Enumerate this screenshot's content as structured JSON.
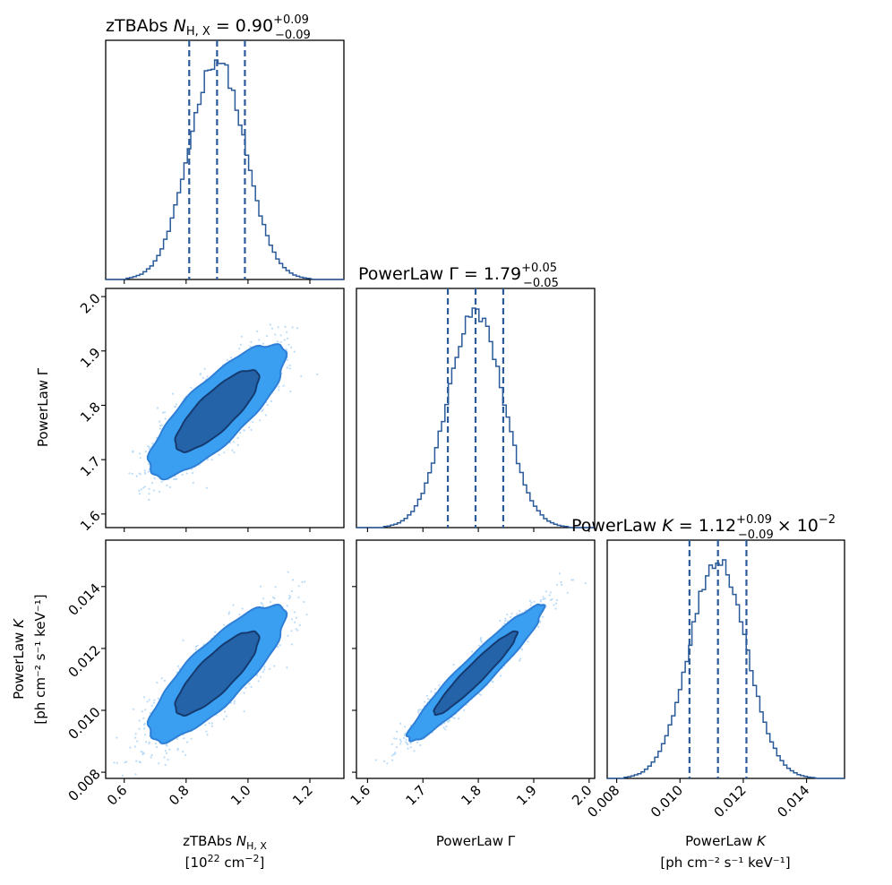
{
  "chart_data": [
    {
      "type": "histogram",
      "panel": "zTBAbs NH,X marginal",
      "title_main": "zTBAbs ",
      "title_sym": "N",
      "title_sub": "H, X",
      "title_eq": " = 0.90",
      "title_sup": "+0.09",
      "title_low": "−0.09",
      "median": 0.9,
      "lower_q": 0.81,
      "upper_q": 0.99,
      "xlim": [
        0.54,
        1.31
      ],
      "xticks": [
        0.6,
        0.8,
        1.0,
        1.2
      ]
    },
    {
      "type": "histogram",
      "panel": "PowerLaw Gamma marginal",
      "title_main": "PowerLaw Γ = 1.79",
      "title_sup": "+0.05",
      "title_low": "−0.05",
      "median": 1.795,
      "lower_q": 1.745,
      "upper_q": 1.845,
      "xlim": [
        1.58,
        2.01
      ],
      "xticks": [
        1.6,
        1.7,
        1.8,
        1.9,
        2.0
      ]
    },
    {
      "type": "histogram",
      "panel": "PowerLaw K marginal",
      "title_main": "PowerLaw ",
      "title_sym": "K",
      "title_eq": " = 1.12",
      "title_sup": "+0.09",
      "title_low": "−0.09",
      "title_mult": "× 10",
      "title_exp": "−2",
      "median": 0.0112,
      "lower_q": 0.0103,
      "upper_q": 0.0121,
      "xlim": [
        0.0077,
        0.0152
      ],
      "xticks": [
        0.008,
        0.01,
        0.012,
        0.014
      ]
    },
    {
      "type": "scatter",
      "panel": "2D posterior NH vs Gamma",
      "x_param": "zTBAbs NH,X",
      "y_param": "PowerLaw Γ",
      "xlim": [
        0.54,
        1.31
      ],
      "ylim": [
        1.575,
        2.015
      ],
      "yticks": [
        1.6,
        1.7,
        1.8,
        1.9,
        2.0
      ],
      "center": [
        0.9,
        1.79
      ],
      "sigma": [
        0.09,
        0.05
      ],
      "rho": 0.8
    },
    {
      "type": "scatter",
      "panel": "2D posterior NH vs K",
      "x_param": "zTBAbs NH,X",
      "y_param": "PowerLaw K",
      "xlim": [
        0.54,
        1.31
      ],
      "ylim": [
        0.0078,
        0.0155
      ],
      "yticks": [
        0.008,
        0.01,
        0.012,
        0.014
      ],
      "center": [
        0.9,
        0.0112
      ],
      "sigma": [
        0.09,
        0.0009
      ],
      "rho": 0.82
    },
    {
      "type": "scatter",
      "panel": "2D posterior Gamma vs K",
      "x_param": "PowerLaw Γ",
      "y_param": "PowerLaw K",
      "xlim": [
        1.58,
        2.01
      ],
      "ylim": [
        0.0078,
        0.0155
      ],
      "center": [
        1.795,
        0.0112
      ],
      "sigma": [
        0.05,
        0.0009
      ],
      "rho": 0.95
    }
  ],
  "labels": {
    "x0_line1_a": "zTBAbs ",
    "x0_line1_sym": "N",
    "x0_line1_sub": "H, X",
    "x0_line2": "[10",
    "x0_line2_sup": "22",
    "x0_line2_b": " cm",
    "x0_line2_sup2": "−2",
    "x0_line2_c": "]",
    "x1_line1": "PowerLaw Γ",
    "x2_line1_a": "PowerLaw ",
    "x2_line1_sym": "K",
    "x2_line2": "[ph cm⁻² s⁻¹ keV⁻¹]",
    "y1_label": "PowerLaw Γ",
    "y2_line1_a": "PowerLaw ",
    "y2_line1_sym": "K",
    "y2_line2": "[ph cm⁻² s⁻¹ keV⁻¹]"
  },
  "tick_labels": {
    "nh": [
      "0.6",
      "0.8",
      "1.0",
      "1.2"
    ],
    "gamma": [
      "1.6",
      "1.7",
      "1.8",
      "1.9",
      "2.0"
    ],
    "k": [
      "0.008",
      "0.010",
      "0.012",
      "0.014"
    ]
  },
  "colors": {
    "hist": "#2a5a9a",
    "contour_outer": "#3a9ff0",
    "contour_inner": "#2563a8",
    "scatter": "#bcdcf8"
  }
}
